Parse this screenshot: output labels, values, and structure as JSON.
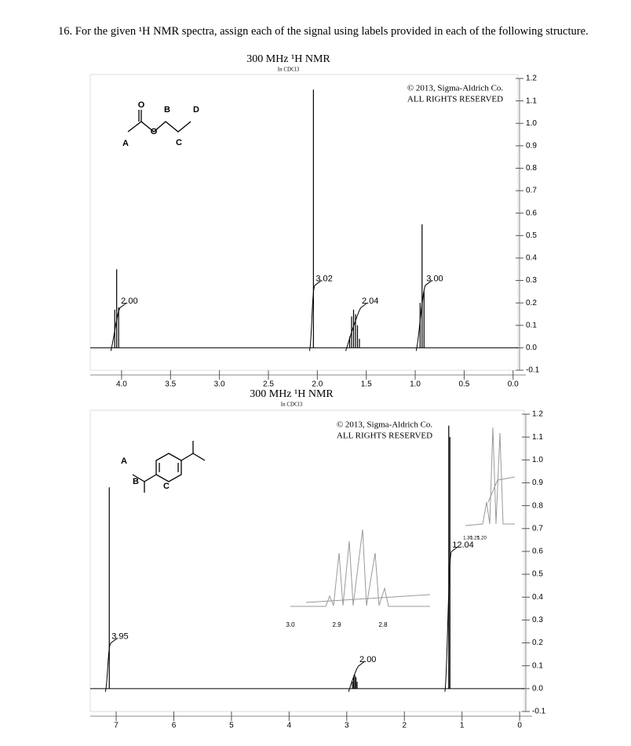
{
  "question": "16. For the given ¹H NMR spectra, assign each of the signal using labels provided in each of the following structure.",
  "spectra": [
    {
      "type": "nmr",
      "title": "300 MHz ¹H NMR",
      "solvent": "In CDCl3",
      "copyright": [
        "© 2013, Sigma-Aldrich Co.",
        "ALL RIGHTS RESERVED"
      ],
      "structure_labels": [
        "O",
        "B",
        "D",
        "O",
        "A",
        "C"
      ],
      "xlim": [
        4.32,
        -0.05
      ],
      "ylim": [
        -0.1,
        1.2
      ],
      "xticks": [
        {
          "value": 4.0,
          "label": "4.0"
        },
        3.5,
        {
          "value": 3.0,
          "label": "3.0"
        },
        2.5,
        {
          "value": 2.0,
          "label": "2.0"
        },
        1.5,
        {
          "value": 1.0,
          "label": "1.0"
        },
        0.5,
        {
          "value": 0.0,
          "label": "0.0"
        }
      ],
      "yticks": [
        1.2,
        1.1,
        {
          "value": 1.0,
          "label": "1.0"
        },
        0.9,
        0.8,
        0.7,
        0.6,
        0.5,
        0.4,
        0.3,
        0.2,
        0.1,
        {
          "value": 0.0,
          "label": "0.0"
        },
        -0.1
      ],
      "multiplets": [
        {
          "integral": "2.00",
          "shifts": [
            4.07,
            4.05,
            4.03
          ],
          "heights": [
            0.17,
            0.35,
            0.18
          ]
        },
        {
          "integral": "3.02",
          "shifts": [
            2.04
          ],
          "heights": [
            1.15
          ]
        },
        {
          "integral": "2.04",
          "shifts": [
            1.67,
            1.65,
            1.63,
            1.61,
            1.59,
            1.57
          ],
          "heights": [
            0.05,
            0.14,
            0.17,
            0.15,
            0.1,
            0.04
          ]
        },
        {
          "integral": "3.00",
          "shifts": [
            0.95,
            0.93,
            0.91
          ],
          "heights": [
            0.2,
            0.55,
            0.25
          ]
        }
      ]
    },
    {
      "type": "nmr",
      "title": "300 MHz ¹H NMR",
      "solvent": "In CDCl3",
      "copyright": [
        "© 2013, Sigma-Aldrich Co.",
        "ALL RIGHTS RESERVED"
      ],
      "structure_labels": [
        "A",
        "B",
        "C"
      ],
      "xlim": [
        7.45,
        -0.08
      ],
      "ylim": [
        -0.1,
        1.2
      ],
      "xticks": [
        7,
        6,
        5,
        4,
        3,
        2,
        1,
        0
      ],
      "yticks": [
        1.2,
        1.1,
        {
          "value": 1.0,
          "label": "1.0"
        },
        0.9,
        0.8,
        0.7,
        0.6,
        0.5,
        0.4,
        0.3,
        0.2,
        0.1,
        {
          "value": 0.0,
          "label": "0.0"
        },
        -0.1
      ],
      "multiplets": [
        {
          "integral": "3.95",
          "shifts": [
            7.12
          ],
          "heights": [
            0.88
          ]
        },
        {
          "integral": "2.00",
          "shifts": [
            2.9,
            2.88,
            2.86,
            2.84,
            2.82
          ],
          "heights": [
            0.03,
            0.05,
            0.06,
            0.05,
            0.03
          ]
        },
        {
          "integral": "12.04",
          "shifts": [
            1.23,
            1.21
          ],
          "heights": [
            1.15,
            1.1
          ]
        }
      ],
      "insets": [
        {
          "ticks": [
            {
              "value": 3.0,
              "label": "3.0"
            },
            2.9,
            {
              "value": 2.8,
              "label": "2.8"
            }
          ]
        },
        {
          "ticks": [
            {
              "value": 1.3,
              "label": "1.30"
            },
            1.25,
            {
              "value": 1.2,
              "label": "1.20"
            }
          ]
        }
      ]
    }
  ]
}
